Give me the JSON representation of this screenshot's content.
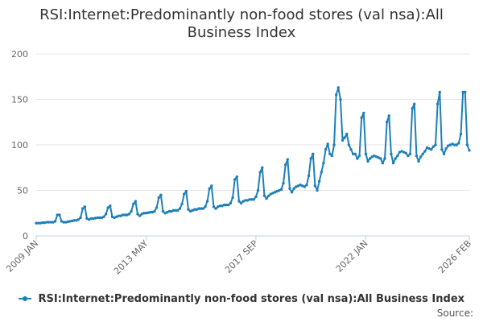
{
  "chart_data": {
    "type": "line",
    "title": "RSI:Internet:Predominantly non-food stores (val nsa):All Business Index",
    "xlabel": "",
    "ylabel": "",
    "ylim": [
      0,
      200
    ],
    "yticks": [
      0,
      50,
      100,
      150,
      200
    ],
    "xticks": [
      {
        "label": "2009 JAN",
        "index": 0
      },
      {
        "label": "2013 MAY",
        "index": 52
      },
      {
        "label": "2017 SEP",
        "index": 104
      },
      {
        "label": "2022 JAN",
        "index": 156
      },
      {
        "label": "2026 FEB",
        "index": 205
      }
    ],
    "grid": true,
    "legend": "bottom",
    "colors": {
      "series": "#1f7fb8",
      "grid": "#e6e6e6",
      "axis": "#c0d0e0"
    },
    "series": [
      {
        "name": "RSI:Internet:Predominantly non-food stores (val nsa):All Business Index",
        "start": "2009 JAN",
        "frequency": "monthly",
        "values": [
          14,
          14,
          14,
          14.5,
          14.5,
          15,
          15,
          15,
          15,
          16,
          23,
          23,
          16,
          15,
          15,
          15.5,
          16,
          16.5,
          17,
          17,
          18,
          20,
          30,
          32,
          19,
          18,
          19,
          19,
          19.5,
          20,
          20,
          20,
          21,
          24,
          31,
          33,
          21,
          20,
          21,
          22,
          22,
          23,
          23,
          23,
          24,
          27,
          35,
          38,
          24,
          22,
          24,
          25,
          25,
          25.5,
          26,
          26,
          27,
          31,
          42,
          45,
          27,
          25,
          26,
          27,
          27,
          28,
          28,
          28,
          30,
          35,
          46,
          49,
          29,
          27,
          28,
          29,
          29,
          30,
          30,
          30,
          32,
          38,
          52,
          55,
          32,
          30,
          32,
          33,
          33,
          34,
          34,
          34,
          36,
          42,
          62,
          65,
          38,
          36,
          38,
          39,
          39,
          40,
          40,
          40,
          43,
          50,
          70,
          75,
          44,
          41,
          44,
          46,
          47,
          48,
          49,
          50,
          51,
          58,
          78,
          84,
          52,
          48,
          52,
          54,
          55,
          56,
          55,
          54,
          56,
          66,
          85,
          90,
          55,
          50,
          60,
          70,
          80,
          95,
          101,
          90,
          88,
          100,
          155,
          163,
          150,
          105,
          108,
          112,
          100,
          95,
          90,
          90,
          85,
          88,
          130,
          135,
          90,
          82,
          85,
          87,
          88,
          87,
          86,
          85,
          80,
          85,
          125,
          132,
          90,
          80,
          85,
          88,
          92,
          93,
          92,
          91,
          88,
          90,
          140,
          145,
          88,
          82,
          87,
          90,
          93,
          97,
          96,
          95,
          98,
          100,
          145,
          158,
          95,
          90,
          96,
          99,
          100,
          101,
          100,
          100,
          102,
          112,
          158,
          158,
          100,
          94
        ]
      }
    ]
  },
  "source_label": "Source:"
}
